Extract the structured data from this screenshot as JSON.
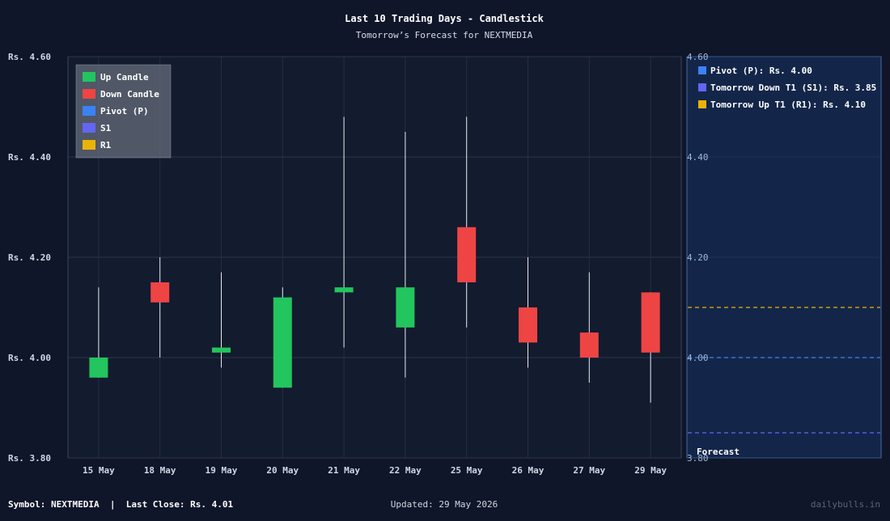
{
  "chart_data": {
    "type": "candlestick",
    "title": "Last 10 Trading Days - Candlestick",
    "subtitle": "Tomorrow’s Forecast for NEXTMEDIA",
    "ylim": [
      3.8,
      4.6
    ],
    "y_ticks": [
      3.8,
      4.0,
      4.2,
      4.4,
      4.6
    ],
    "y_tick_labels": [
      "Rs. 3.80",
      "Rs. 4.00",
      "Rs. 4.20",
      "Rs. 4.40",
      "Rs. 4.60"
    ],
    "y_tick_labels_right": [
      "3.80",
      "4.00",
      "4.20",
      "4.40",
      "4.60"
    ],
    "grid": true,
    "categories": [
      "15 May",
      "18 May",
      "19 May",
      "20 May",
      "21 May",
      "22 May",
      "25 May",
      "26 May",
      "27 May",
      "29 May"
    ],
    "candles": [
      {
        "date": "15 May",
        "open": 3.96,
        "high": 4.14,
        "low": 3.96,
        "close": 4.0
      },
      {
        "date": "18 May",
        "open": 4.15,
        "high": 4.2,
        "low": 4.0,
        "close": 4.11
      },
      {
        "date": "19 May",
        "open": 4.01,
        "high": 4.17,
        "low": 3.98,
        "close": 4.02
      },
      {
        "date": "20 May",
        "open": 3.94,
        "high": 4.14,
        "low": 3.94,
        "close": 4.12
      },
      {
        "date": "21 May",
        "open": 4.13,
        "high": 4.48,
        "low": 4.02,
        "close": 4.14
      },
      {
        "date": "22 May",
        "open": 4.06,
        "high": 4.45,
        "low": 3.96,
        "close": 4.14
      },
      {
        "date": "25 May",
        "open": 4.26,
        "high": 4.48,
        "low": 4.06,
        "close": 4.15
      },
      {
        "date": "26 May",
        "open": 4.1,
        "high": 4.2,
        "low": 3.98,
        "close": 4.03
      },
      {
        "date": "27 May",
        "open": 4.05,
        "high": 4.17,
        "low": 3.95,
        "close": 4.0
      },
      {
        "date": "29 May",
        "open": 4.13,
        "high": 4.13,
        "low": 3.91,
        "close": 4.01
      }
    ],
    "legend": {
      "placement": "top-left",
      "items": [
        {
          "label": "Up Candle",
          "color": "#22c55e"
        },
        {
          "label": "Down Candle",
          "color": "#ef4444"
        },
        {
          "label": "Pivot (P)",
          "color": "#3b82f6"
        },
        {
          "label": "S1",
          "color": "#6366f1"
        },
        {
          "label": "R1",
          "color": "#eab308"
        }
      ]
    },
    "forecast": {
      "label": "Forecast",
      "levels": [
        {
          "key": "pivot",
          "legend": "Pivot (P): Rs. 4.00",
          "value": 4.0,
          "color": "#3b82f6"
        },
        {
          "key": "s1",
          "legend": "Tomorrow Down T1 (S1): Rs. 3.85",
          "value": 3.85,
          "color": "#6366f1"
        },
        {
          "key": "r1",
          "legend": "Tomorrow Up T1 (R1): Rs. 4.10",
          "value": 4.1,
          "color": "#eab308"
        }
      ]
    }
  },
  "footer": {
    "symbol_text": "Symbol: NEXTMEDIA  |  Last Close: Rs. 4.01",
    "updated_text": "Updated: 29 May 2026",
    "brand": "dailybulls.in"
  },
  "colors": {
    "background": "#0f1629",
    "plot_background": "#131b2e",
    "forecast_panel": "#13264a",
    "up": "#22c55e",
    "down": "#ef4444"
  }
}
